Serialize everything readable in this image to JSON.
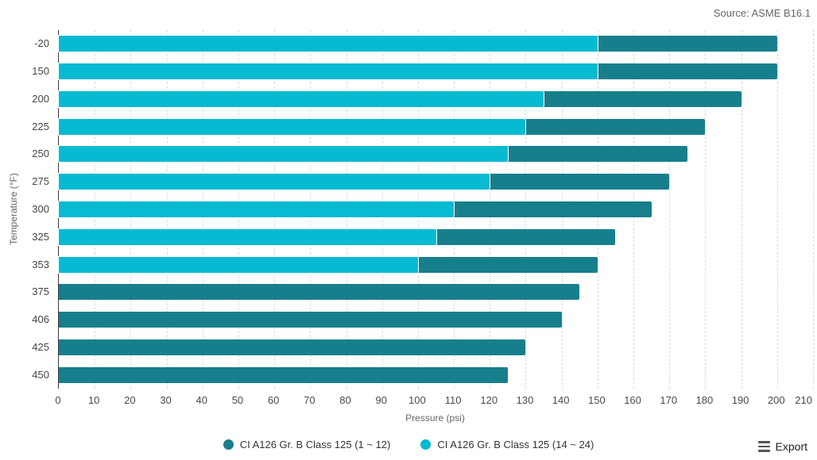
{
  "header": {
    "source": "Source: ASME B16.1"
  },
  "toolbar": {
    "export_label": "Export"
  },
  "colors": {
    "series1": "#177F8C",
    "series2": "#06BAD2",
    "axis_line": "#3A3A3A",
    "gridline": "#D9D9D9",
    "tick_label": "#4A4A4A",
    "muted_text": "#666666"
  },
  "chart_data": {
    "type": "bar",
    "orientation": "horizontal",
    "title": "",
    "xlabel": "Pressure (psi)",
    "ylabel": "Temperature (°F)",
    "xlim": [
      0,
      210
    ],
    "x_ticks": [
      0,
      10,
      20,
      30,
      40,
      50,
      60,
      70,
      80,
      90,
      100,
      110,
      120,
      130,
      140,
      150,
      160,
      170,
      180,
      190,
      200,
      210
    ],
    "grid": "vertical-dashed",
    "legend_position": "bottom-center",
    "categories": [
      "-20",
      "150",
      "200",
      "225",
      "250",
      "275",
      "300",
      "325",
      "353",
      "375",
      "406",
      "425",
      "450"
    ],
    "series": [
      {
        "name": "CI A126 Gr. B Class 125 (1 ~ 12)",
        "color": "#177F8C",
        "values": [
          200,
          200,
          190,
          180,
          175,
          170,
          165,
          155,
          150,
          145,
          140,
          130,
          125
        ]
      },
      {
        "name": "CI A126 Gr. B Class 125 (14 ~ 24)",
        "color": "#06BAD2",
        "values": [
          150,
          150,
          135,
          130,
          125,
          120,
          110,
          105,
          100,
          null,
          null,
          null,
          null
        ]
      }
    ]
  }
}
